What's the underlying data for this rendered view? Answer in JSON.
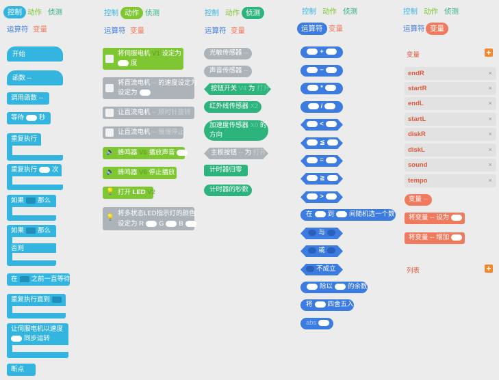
{
  "tabs": {
    "control": "控制",
    "action": "动作",
    "sense": "侦测",
    "operator": "运算符",
    "variable": "变量"
  },
  "control": {
    "start": "开始",
    "func": "函数",
    "func_dots": "--",
    "call_func": "调用函数",
    "call_dots": "--",
    "wait_a": "等待",
    "wait_b": "秒",
    "repeat": "重复执行",
    "repeat_n_a": "重复执行",
    "repeat_n_b": "次",
    "if_a": "如果",
    "if_b": "那么",
    "if2_a": "如果",
    "if2_b": "那么",
    "else": "否则",
    "wait_until_a": "在",
    "wait_until_b": "之前一直等待",
    "repeat_until": "重复执行直到",
    "servo_sync_a": "让伺服电机以速度",
    "servo_sync_b": "同步运转",
    "breakpoint": "断点"
  },
  "action": {
    "servo_a": "将伺服电机",
    "servo_v": "V1",
    "servo_b": "设定为",
    "servo_c": "度",
    "dc_a": "将直流电机",
    "dc_b": "的速度设定为",
    "dc_c": "设定为",
    "dc_ccw_a": "让直流电机",
    "dc_ccw_b": "-- 顺时针旋转",
    "dc_stop_a": "让直流电机",
    "dc_stop_b": "-- 慢慢停止",
    "buzzer_play_a": "蜂鸣器",
    "buzzer_play_v": "V6",
    "buzzer_play_b": "播放声音",
    "buzzer_stop_a": "蜂鸣器",
    "buzzer_stop_v": "V6",
    "buzzer_stop_b": "停止播放",
    "led_a": "打开",
    "led_b": "LED",
    "led_v": "V2",
    "rgb_a": "将多状态LED指示灯的颜色",
    "rgb_b": "设定为 R",
    "rgb_g": "G",
    "rgb_bl": "B"
  },
  "sense": {
    "light": "光敏传感器",
    "light_dots": "--",
    "sound": "声音传感器",
    "sound_dots": "--",
    "button_a": "按钮开关",
    "button_v": "V4",
    "button_b": "为",
    "button_c": "打开",
    "ir_a": "红外线传感器",
    "ir_v": "X2",
    "accel_a": "加速度传感器",
    "accel_v": "X0",
    "accel_b": "的",
    "accel_c": "方向",
    "main_btn_a": "主板按钮",
    "main_btn_b": "为",
    "main_btn_c": "打开",
    "timer_reset": "计时器归零",
    "timer_sec": "计时器的秒数"
  },
  "operator": {
    "plus": "+",
    "minus": "−",
    "times": "*",
    "divide": "/",
    "lt": "<",
    "le": "≦",
    "eq": "=",
    "ge": "≧",
    "gt": ">",
    "rand_a": "在",
    "rand_b": "到",
    "rand_c": "间随机选一个数",
    "and": "与",
    "or": "或",
    "not": "不成立",
    "mod_a": "除以",
    "mod_b": "的余数",
    "round_a": "将",
    "round_b": "四舍五入",
    "abs": "abs"
  },
  "variables": {
    "header": "变量",
    "items": [
      "endR",
      "startR",
      "endL",
      "startL",
      "diskR",
      "diskL",
      "sound",
      "tempo"
    ],
    "remove": "×",
    "var_block": "变量",
    "var_dots": "--",
    "set_a": "将变量",
    "set_b": "-- 设为",
    "inc_a": "将变量",
    "inc_b": "-- 增加",
    "list_header": "列表",
    "add": "+"
  },
  "colors": {
    "control": "#34b5e0",
    "action": "#7ec632",
    "disabled": "#adb4b9",
    "sense": "#2db37c",
    "operator": "#3c7be0",
    "variable": "#f07a5e",
    "add_button": "#f28a2d"
  }
}
